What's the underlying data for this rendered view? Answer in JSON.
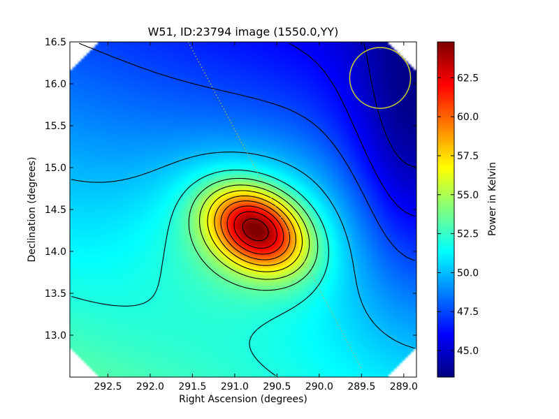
{
  "chart_data": {
    "type": "heatmap",
    "title": "W51, ID:23794 image (1550.0,YY)",
    "xlabel": "Right Ascension (degrees)",
    "ylabel": "Declination (degrees)",
    "colorbar_label": "Power in Kelvin",
    "xlim": [
      292.95,
      288.85
    ],
    "ylim": [
      12.5,
      16.5
    ],
    "x_ticks": [
      292.5,
      292.0,
      291.5,
      291.0,
      290.5,
      290.0,
      289.5,
      289.0
    ],
    "x_tick_labels": [
      "292.5",
      "292.0",
      "291.5",
      "291.0",
      "290.5",
      "290.0",
      "289.5",
      "289.0"
    ],
    "y_ticks": [
      13.0,
      13.5,
      14.0,
      14.5,
      15.0,
      15.5,
      16.0,
      16.5
    ],
    "y_tick_labels": [
      "13.0",
      "13.5",
      "14.0",
      "14.5",
      "15.0",
      "15.5",
      "16.0",
      "16.5"
    ],
    "colorbar_range": [
      43.3,
      64.8
    ],
    "colorbar_ticks": [
      45.0,
      47.5,
      50.0,
      52.5,
      55.0,
      57.5,
      60.0,
      62.5
    ],
    "colorbar_tick_labels": [
      "45.0",
      "47.5",
      "50.0",
      "52.5",
      "55.0",
      "57.5",
      "60.0",
      "62.5"
    ],
    "colormap": "jet",
    "peak": {
      "ra": 290.75,
      "dec": 14.27,
      "value": 64.5
    },
    "contour_levels": [
      44.5,
      46.0,
      47.5,
      50.0,
      52.0,
      53.5,
      55.0,
      56.5,
      58.0,
      59.5,
      61.0,
      62.5,
      64.0
    ],
    "beam_circle": {
      "ra": 289.28,
      "dec": 16.07,
      "radius_deg": 0.36,
      "color": "#cccc33"
    },
    "scan_line": {
      "from": {
        "ra": 291.55,
        "dec": 16.5
      },
      "to": {
        "ra": 289.5,
        "dec": 12.6
      },
      "color": "#bbbb55"
    }
  }
}
